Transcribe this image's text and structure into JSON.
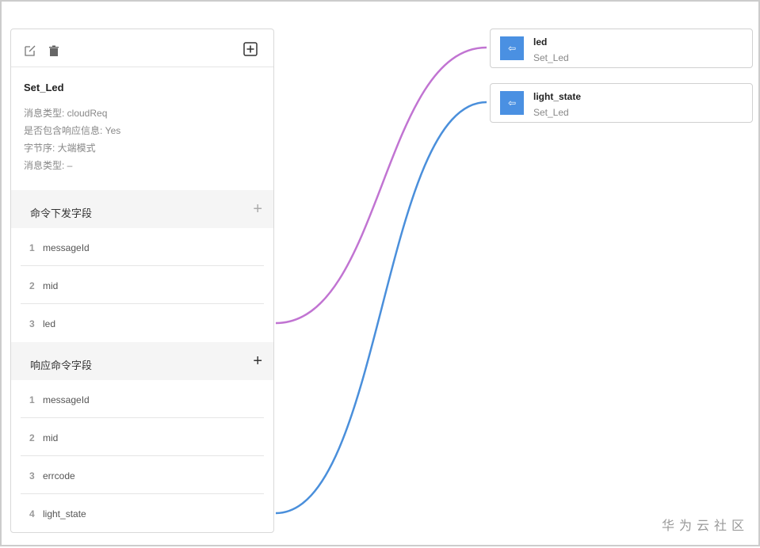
{
  "command": {
    "title": "Set_Led",
    "info": [
      "消息类型: cloudReq",
      "是否包含响应信息: Yes",
      "字节序: 大端模式",
      "消息类型: –"
    ],
    "sections": [
      {
        "label": "命令下发字段",
        "fields": [
          {
            "n": "1",
            "name": "messageId"
          },
          {
            "n": "2",
            "name": "mid"
          },
          {
            "n": "3",
            "name": "led"
          }
        ]
      },
      {
        "label": "响应命令字段",
        "fields": [
          {
            "n": "1",
            "name": "messageId"
          },
          {
            "n": "2",
            "name": "mid"
          },
          {
            "n": "3",
            "name": "errcode"
          },
          {
            "n": "4",
            "name": "light_state"
          }
        ]
      }
    ],
    "plus": "+"
  },
  "properties": [
    {
      "name": "led",
      "command": "Set_Led",
      "icon": "⇦"
    },
    {
      "name": "light_state",
      "command": "Set_Led",
      "icon": "⇦"
    }
  ],
  "colors": {
    "link1": "#c174d2",
    "link2": "#4a8fdb",
    "accent": "#4a90e2"
  },
  "watermark": "华为云社区"
}
